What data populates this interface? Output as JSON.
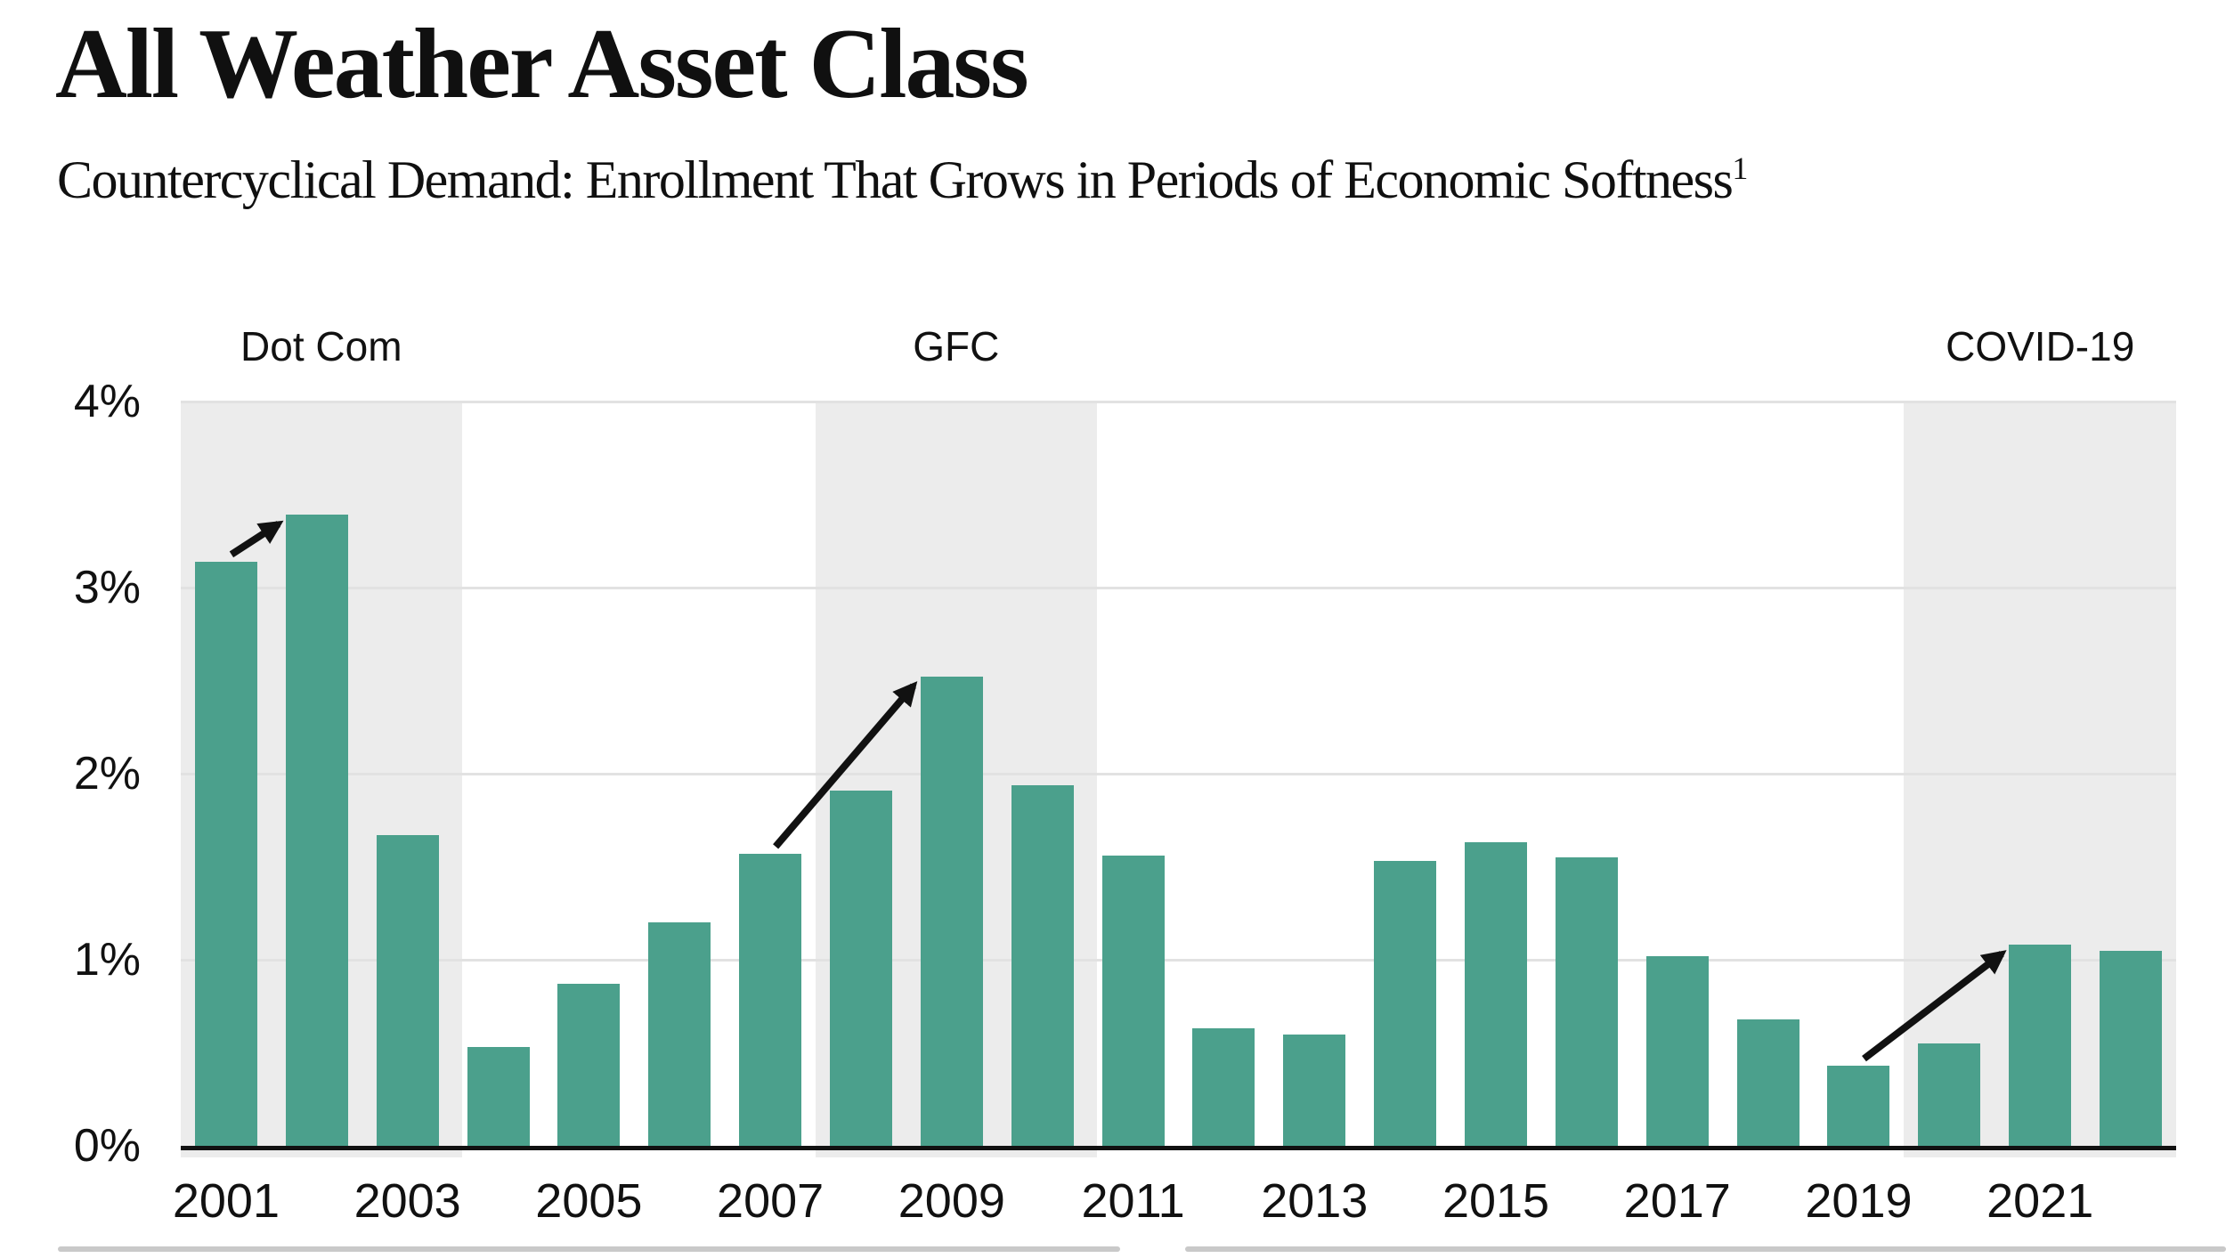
{
  "header": {
    "title": "All Weather Asset Class",
    "subtitle": "Countercyclical Demand: Enrollment That Grows in Periods of Economic Softness",
    "footnote_marker": "1"
  },
  "chart_data": {
    "type": "bar",
    "title": "All Weather Asset Class",
    "subtitle": "Countercyclical Demand: Enrollment That Grows in Periods of Economic Softness",
    "categories": [
      "2001",
      "2002",
      "2003",
      "2004",
      "2005",
      "2006",
      "2007",
      "2008",
      "2009",
      "2010",
      "2011",
      "2012",
      "2013",
      "2014",
      "2015",
      "2016",
      "2017",
      "2018",
      "2019",
      "2020",
      "2021",
      "2022"
    ],
    "values": [
      3.14,
      3.39,
      1.67,
      0.53,
      0.87,
      1.2,
      1.57,
      1.91,
      2.52,
      1.94,
      1.56,
      0.63,
      0.6,
      1.53,
      1.63,
      1.55,
      1.02,
      0.68,
      0.43,
      0.55,
      1.08,
      1.05
    ],
    "unit": "%",
    "ylim": [
      0,
      4
    ],
    "y_tick_labels": [
      "0%",
      "1%",
      "2%",
      "3%",
      "4%"
    ],
    "x_tick_labels": [
      "2001",
      "2003",
      "2005",
      "2007",
      "2009",
      "2011",
      "2013",
      "2015",
      "2017",
      "2019",
      "2021"
    ],
    "grid": "horizontal gridlines at 1%, 2%, 3%, 4%",
    "legend": "none",
    "xlabel": "",
    "ylabel": "",
    "bands": [
      {
        "label": "Dot Com",
        "from_year": "2001",
        "to_year": "2003"
      },
      {
        "label": "GFC",
        "from_year": "2008",
        "to_year": "2010"
      },
      {
        "label": "COVID-19",
        "from_year": "2020",
        "to_year": "2022"
      }
    ],
    "arrows": [
      {
        "from_year": "2001",
        "to_year": "2002"
      },
      {
        "from_year": "2007",
        "to_year": "2009"
      },
      {
        "from_year": "2019",
        "to_year": "2021"
      }
    ],
    "colors": {
      "bar": "#4BA08C",
      "band": "#ECECEC",
      "gridline": "#E2E2E2",
      "axis": "#111111",
      "arrow": "#111111",
      "text": "#111111"
    }
  },
  "footer": {
    "divider_color": "#C9C9C9"
  }
}
